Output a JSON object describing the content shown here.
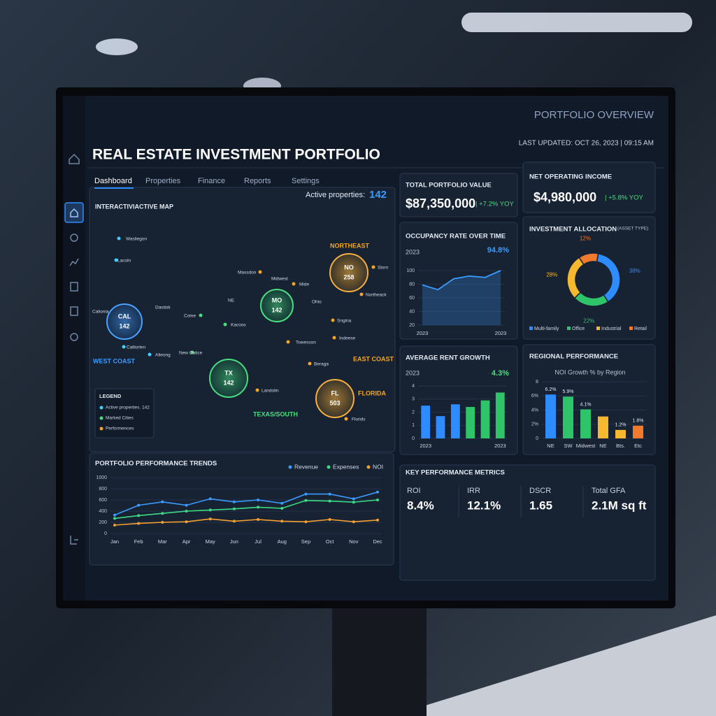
{
  "header": {
    "title": "REAL ESTATE INVESTMENT PORTFOLIO",
    "overview": "PORTFOLIO OVERVIEW",
    "updated": "LAST UPDATED: OCT 26, 2023 | 09:15 AM"
  },
  "nav": [
    "Dashboard",
    "Properties",
    "Finance",
    "Reports",
    "Settings"
  ],
  "map": {
    "title": "INTERACTIVIACTIVE MAP",
    "active_label": "Active properties:",
    "active_count": 142,
    "bubbles": [
      {
        "label": "CAL",
        "count": 142
      },
      {
        "label": "MO",
        "count": 142
      },
      {
        "label": "NO",
        "count": 258
      },
      {
        "label": "TX",
        "count": 142
      },
      {
        "label": "FL",
        "count": 503
      }
    ],
    "region_labels": [
      "WEST COAST",
      "NORTHEAST",
      "EAST COAST",
      "TEXAS/SOUTH",
      "FLORIDA"
    ],
    "cities": [
      "Wasliegon",
      "Lacoln",
      "Calionia",
      "Calliorlen",
      "Dastiok",
      "Coine",
      "NE",
      "Kacoos",
      "Massdon",
      "Midwest",
      "Mide",
      "Ohio",
      "Slorn",
      "Northeack",
      "Sngina",
      "Towesson",
      "Indeese",
      "Beraga",
      "Alleong",
      "New Catice",
      "Landolin",
      "Florids"
    ],
    "legend": {
      "title": "LEGEND",
      "items": [
        "Active properties. 142",
        "Marked Cities",
        "Performences"
      ]
    }
  },
  "kpis": [
    {
      "label": "TOTAL PORTFOLIO VALUE",
      "value": "$87,350,000",
      "change": "| +7.2% YOY"
    },
    {
      "label": "NET OPERATING INCOME",
      "value": "$4,980,000",
      "change": "| +5.8% YOY"
    }
  ],
  "metrics": {
    "title": "KEY PERFORMANCE METRICS",
    "items": [
      {
        "label": "ROI",
        "value": "8.4%"
      },
      {
        "label": "IRR",
        "value": "12.1%"
      },
      {
        "label": "DSCR",
        "value": "1.65"
      },
      {
        "label": "Total GFA",
        "value": "2.1M sq ft"
      }
    ]
  },
  "chart_data": [
    {
      "type": "line",
      "title": "OCCUPANCY RATE OVER TIME",
      "subtitle": "2023",
      "highlight": "94.8%",
      "color": "#3b9cff",
      "categories": [
        "2023",
        null,
        null,
        null,
        null,
        "2023"
      ],
      "values": [
        79,
        72,
        88,
        92,
        90,
        100
      ],
      "ylim": [
        20,
        100
      ],
      "yticks": [
        20,
        40,
        60,
        80,
        100
      ]
    },
    {
      "type": "bar",
      "title": "AVERAGE RENT GROWTH",
      "subtitle": "2023",
      "highlight": "4.3%",
      "categories": [
        "2023",
        null,
        null,
        null,
        null,
        "2023"
      ],
      "values": [
        2.5,
        1.7,
        2.6,
        2.4,
        2.9,
        3.5
      ],
      "colors": [
        "#2f8cff",
        "#2f8cff",
        "#2f8cff",
        "#2fc46a",
        "#2fc46a",
        "#2fc46a"
      ],
      "ylim": [
        0,
        4
      ],
      "yticks": [
        0,
        1,
        2,
        3,
        4
      ]
    },
    {
      "type": "bar",
      "title": "REGIONAL PERFORMANCE",
      "subtitle": "NOI Growth % by Region",
      "categories": [
        "NE",
        "SW",
        "Midwest",
        "NE",
        "Bts.",
        "Etc"
      ],
      "values": [
        6.2,
        5.9,
        4.1,
        3.1,
        1.2,
        1.8
      ],
      "value_labels": [
        "6.2%",
        "5.9%",
        "4.1%",
        null,
        "1.2%",
        "1.8%"
      ],
      "colors": [
        "#2f8cff",
        "#2fc46a",
        "#2fc46a",
        "#f5b82e",
        "#f5b82e",
        "#f27a2e"
      ],
      "ylim": [
        0,
        8
      ],
      "yticks": [
        0,
        {
          "value": 2,
          "label": "2%"
        },
        {
          "value": 4,
          "label": "4%"
        },
        {
          "value": 6,
          "label": "6%"
        },
        8
      ]
    },
    {
      "type": "pie",
      "title": "INVESTMENT ALLOCATION",
      "subtitle": "(ASSET TYPE)",
      "categories": [
        "Multi-family",
        "Office",
        "Industrial",
        "Retail"
      ],
      "values": [
        38,
        22,
        28,
        12
      ],
      "value_labels": [
        "38%",
        "22%",
        "28%",
        "12%"
      ],
      "colors": [
        "#2f8cff",
        "#2fc46a",
        "#f5b82e",
        "#f27a2e"
      ]
    },
    {
      "type": "line",
      "title": "PORTFOLIO PERFORMANCE TRENDS",
      "categories": [
        "Jan",
        "Feb",
        "Mar",
        "Apr",
        "May",
        "Jun",
        "Jul",
        "Aug",
        "Sep",
        "Oct",
        "Nov",
        "Dec"
      ],
      "series": [
        {
          "name": "Revenue",
          "color": "#3b9cff",
          "values": [
            330,
            505,
            565,
            505,
            620,
            565,
            600,
            540,
            705,
            705,
            620,
            740
          ]
        },
        {
          "name": "Expenses",
          "color": "#3ddc84",
          "values": [
            270,
            320,
            360,
            400,
            420,
            440,
            470,
            450,
            590,
            580,
            560,
            600
          ]
        },
        {
          "name": "NOI",
          "color": "#f5a030",
          "values": [
            150,
            180,
            200,
            210,
            260,
            220,
            250,
            220,
            210,
            250,
            210,
            240
          ]
        }
      ],
      "ylim": [
        0,
        1000
      ],
      "yticks": [
        0,
        200,
        400,
        600,
        800,
        1000
      ]
    }
  ]
}
